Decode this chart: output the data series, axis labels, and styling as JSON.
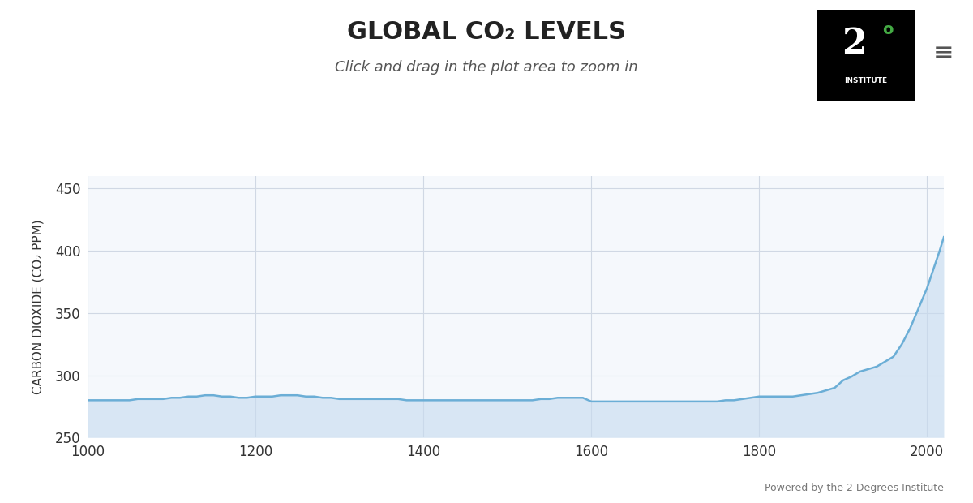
{
  "title": "GLOBAL CO₂ LEVELS",
  "subtitle": "Click and drag in the plot area to zoom in",
  "ylabel": "CARBON DIOXIDE (CO₂ PPM)",
  "xlabel": "",
  "attribution": "Powered by the 2 Degrees Institute",
  "xlim": [
    1000,
    2020
  ],
  "ylim": [
    250,
    460
  ],
  "yticks": [
    250,
    300,
    350,
    400,
    450
  ],
  "xticks": [
    1000,
    1200,
    1400,
    1600,
    1800,
    2000
  ],
  "line_color": "#6baed6",
  "fill_color": "#c6dbef",
  "fill_alpha": 0.6,
  "bg_color": "#f5f8fc",
  "grid_color": "#d0d8e4",
  "title_fontsize": 22,
  "subtitle_fontsize": 13,
  "ylabel_fontsize": 11,
  "tick_fontsize": 12,
  "years": [
    1000,
    1010,
    1020,
    1030,
    1040,
    1050,
    1060,
    1070,
    1080,
    1090,
    1100,
    1110,
    1120,
    1130,
    1140,
    1150,
    1160,
    1170,
    1180,
    1190,
    1200,
    1210,
    1220,
    1230,
    1240,
    1250,
    1260,
    1270,
    1280,
    1290,
    1300,
    1310,
    1320,
    1330,
    1340,
    1350,
    1360,
    1370,
    1380,
    1390,
    1400,
    1410,
    1420,
    1430,
    1440,
    1450,
    1460,
    1470,
    1480,
    1490,
    1500,
    1510,
    1520,
    1530,
    1540,
    1550,
    1560,
    1570,
    1580,
    1590,
    1600,
    1610,
    1620,
    1630,
    1640,
    1650,
    1660,
    1670,
    1680,
    1690,
    1700,
    1710,
    1720,
    1730,
    1740,
    1750,
    1760,
    1770,
    1780,
    1790,
    1800,
    1810,
    1820,
    1830,
    1840,
    1850,
    1860,
    1870,
    1880,
    1890,
    1900,
    1910,
    1920,
    1930,
    1940,
    1950,
    1960,
    1970,
    1980,
    1990,
    2000,
    2005,
    2010,
    2015,
    2020
  ],
  "co2": [
    280,
    280,
    280,
    280,
    280,
    280,
    281,
    281,
    281,
    281,
    282,
    282,
    283,
    283,
    284,
    284,
    283,
    283,
    282,
    282,
    283,
    283,
    283,
    284,
    284,
    284,
    283,
    283,
    282,
    282,
    281,
    281,
    281,
    281,
    281,
    281,
    281,
    281,
    280,
    280,
    280,
    280,
    280,
    280,
    280,
    280,
    280,
    280,
    280,
    280,
    280,
    280,
    280,
    280,
    281,
    281,
    282,
    282,
    282,
    282,
    279,
    279,
    279,
    279,
    279,
    279,
    279,
    279,
    279,
    279,
    279,
    279,
    279,
    279,
    279,
    279,
    280,
    280,
    281,
    282,
    283,
    283,
    283,
    283,
    283,
    284,
    285,
    286,
    288,
    290,
    296,
    299,
    303,
    305,
    307,
    311,
    315,
    325,
    338,
    354,
    370,
    380,
    390,
    400,
    411
  ]
}
